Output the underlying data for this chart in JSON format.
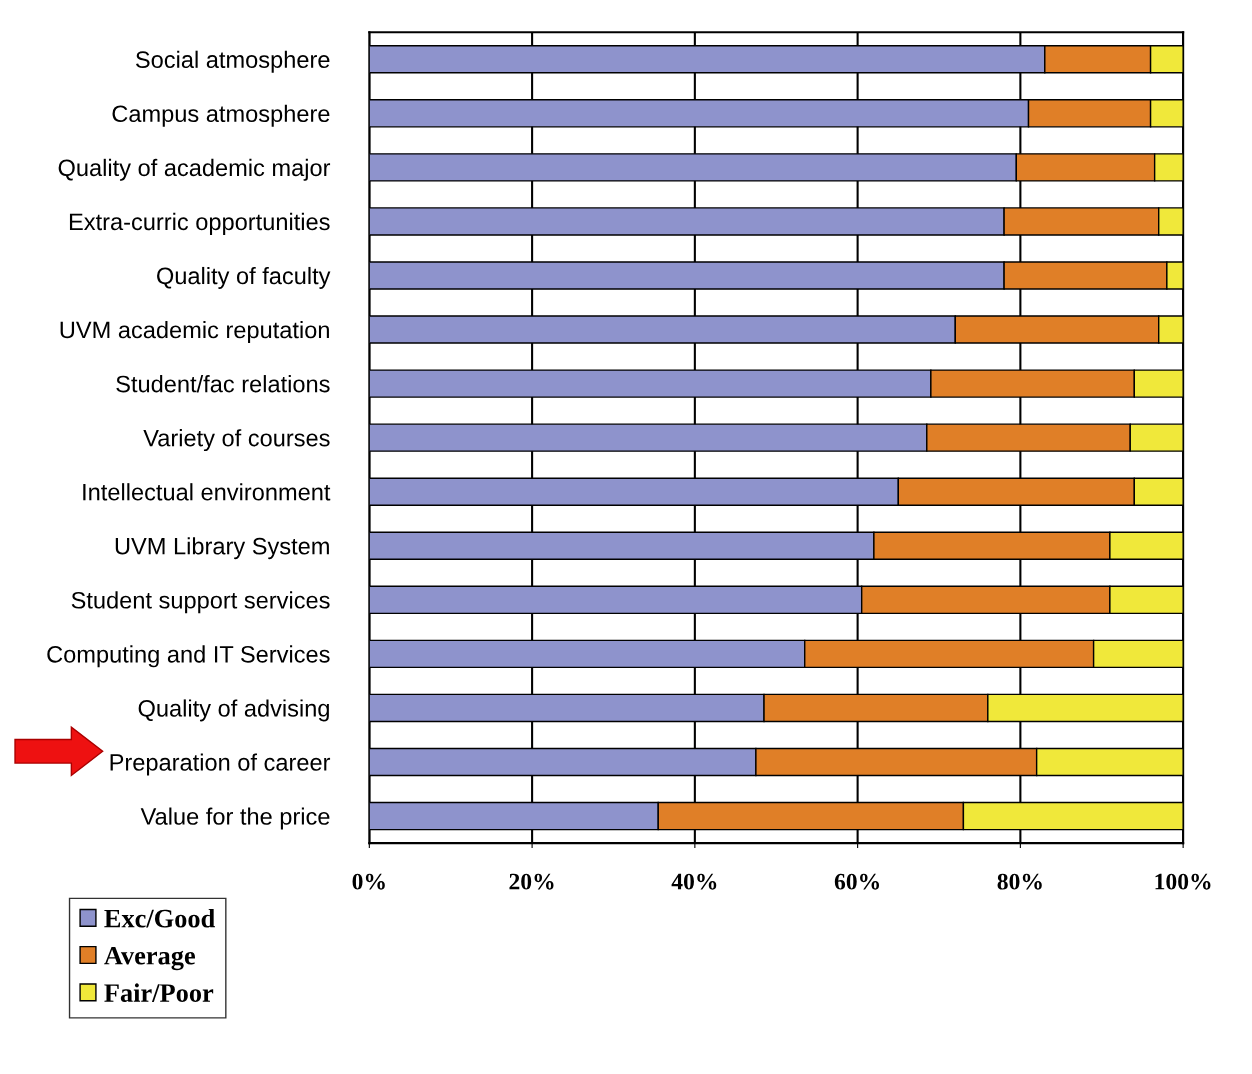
{
  "chart_data": {
    "type": "bar",
    "orientation": "horizontal",
    "stacked": true,
    "categories": [
      "Social atmosphere",
      "Campus atmosphere",
      "Quality of academic major",
      "Extra-curric opportunities",
      "Quality of faculty",
      "UVM academic reputation",
      "Student/fac relations",
      "Variety of courses",
      "Intellectual environment",
      "UVM Library System",
      "Student support services",
      "Computing and IT Services",
      "Quality of advising",
      "Preparation of career",
      "Value for the price"
    ],
    "series": [
      {
        "name": "Exc/Good",
        "color": "#8e93cc",
        "values": [
          83,
          81,
          79.5,
          78,
          78,
          72,
          69,
          68.5,
          65,
          62,
          60.5,
          53.5,
          48.5,
          47.5,
          35.5
        ]
      },
      {
        "name": "Average",
        "color": "#e07f27",
        "values": [
          13,
          15,
          17,
          19,
          20,
          25,
          25,
          25,
          29,
          29,
          30.5,
          35.5,
          27.5,
          34.5,
          37.5
        ]
      },
      {
        "name": "Fair/Poor",
        "color": "#f0e83a",
        "values": [
          4,
          4,
          3.5,
          3,
          2,
          3,
          6,
          6.5,
          6,
          9,
          9,
          11,
          24,
          18,
          27
        ]
      }
    ],
    "xlim": [
      0,
      100
    ],
    "xticks": [
      {
        "value": 0,
        "label": "0%"
      },
      {
        "value": 20,
        "label": "20%"
      },
      {
        "value": 40,
        "label": "40%"
      },
      {
        "value": 60,
        "label": "60%"
      },
      {
        "value": 80,
        "label": "80%"
      },
      {
        "value": 100,
        "label": "100%"
      }
    ],
    "grid": "x",
    "legend": "bottom left"
  }
}
